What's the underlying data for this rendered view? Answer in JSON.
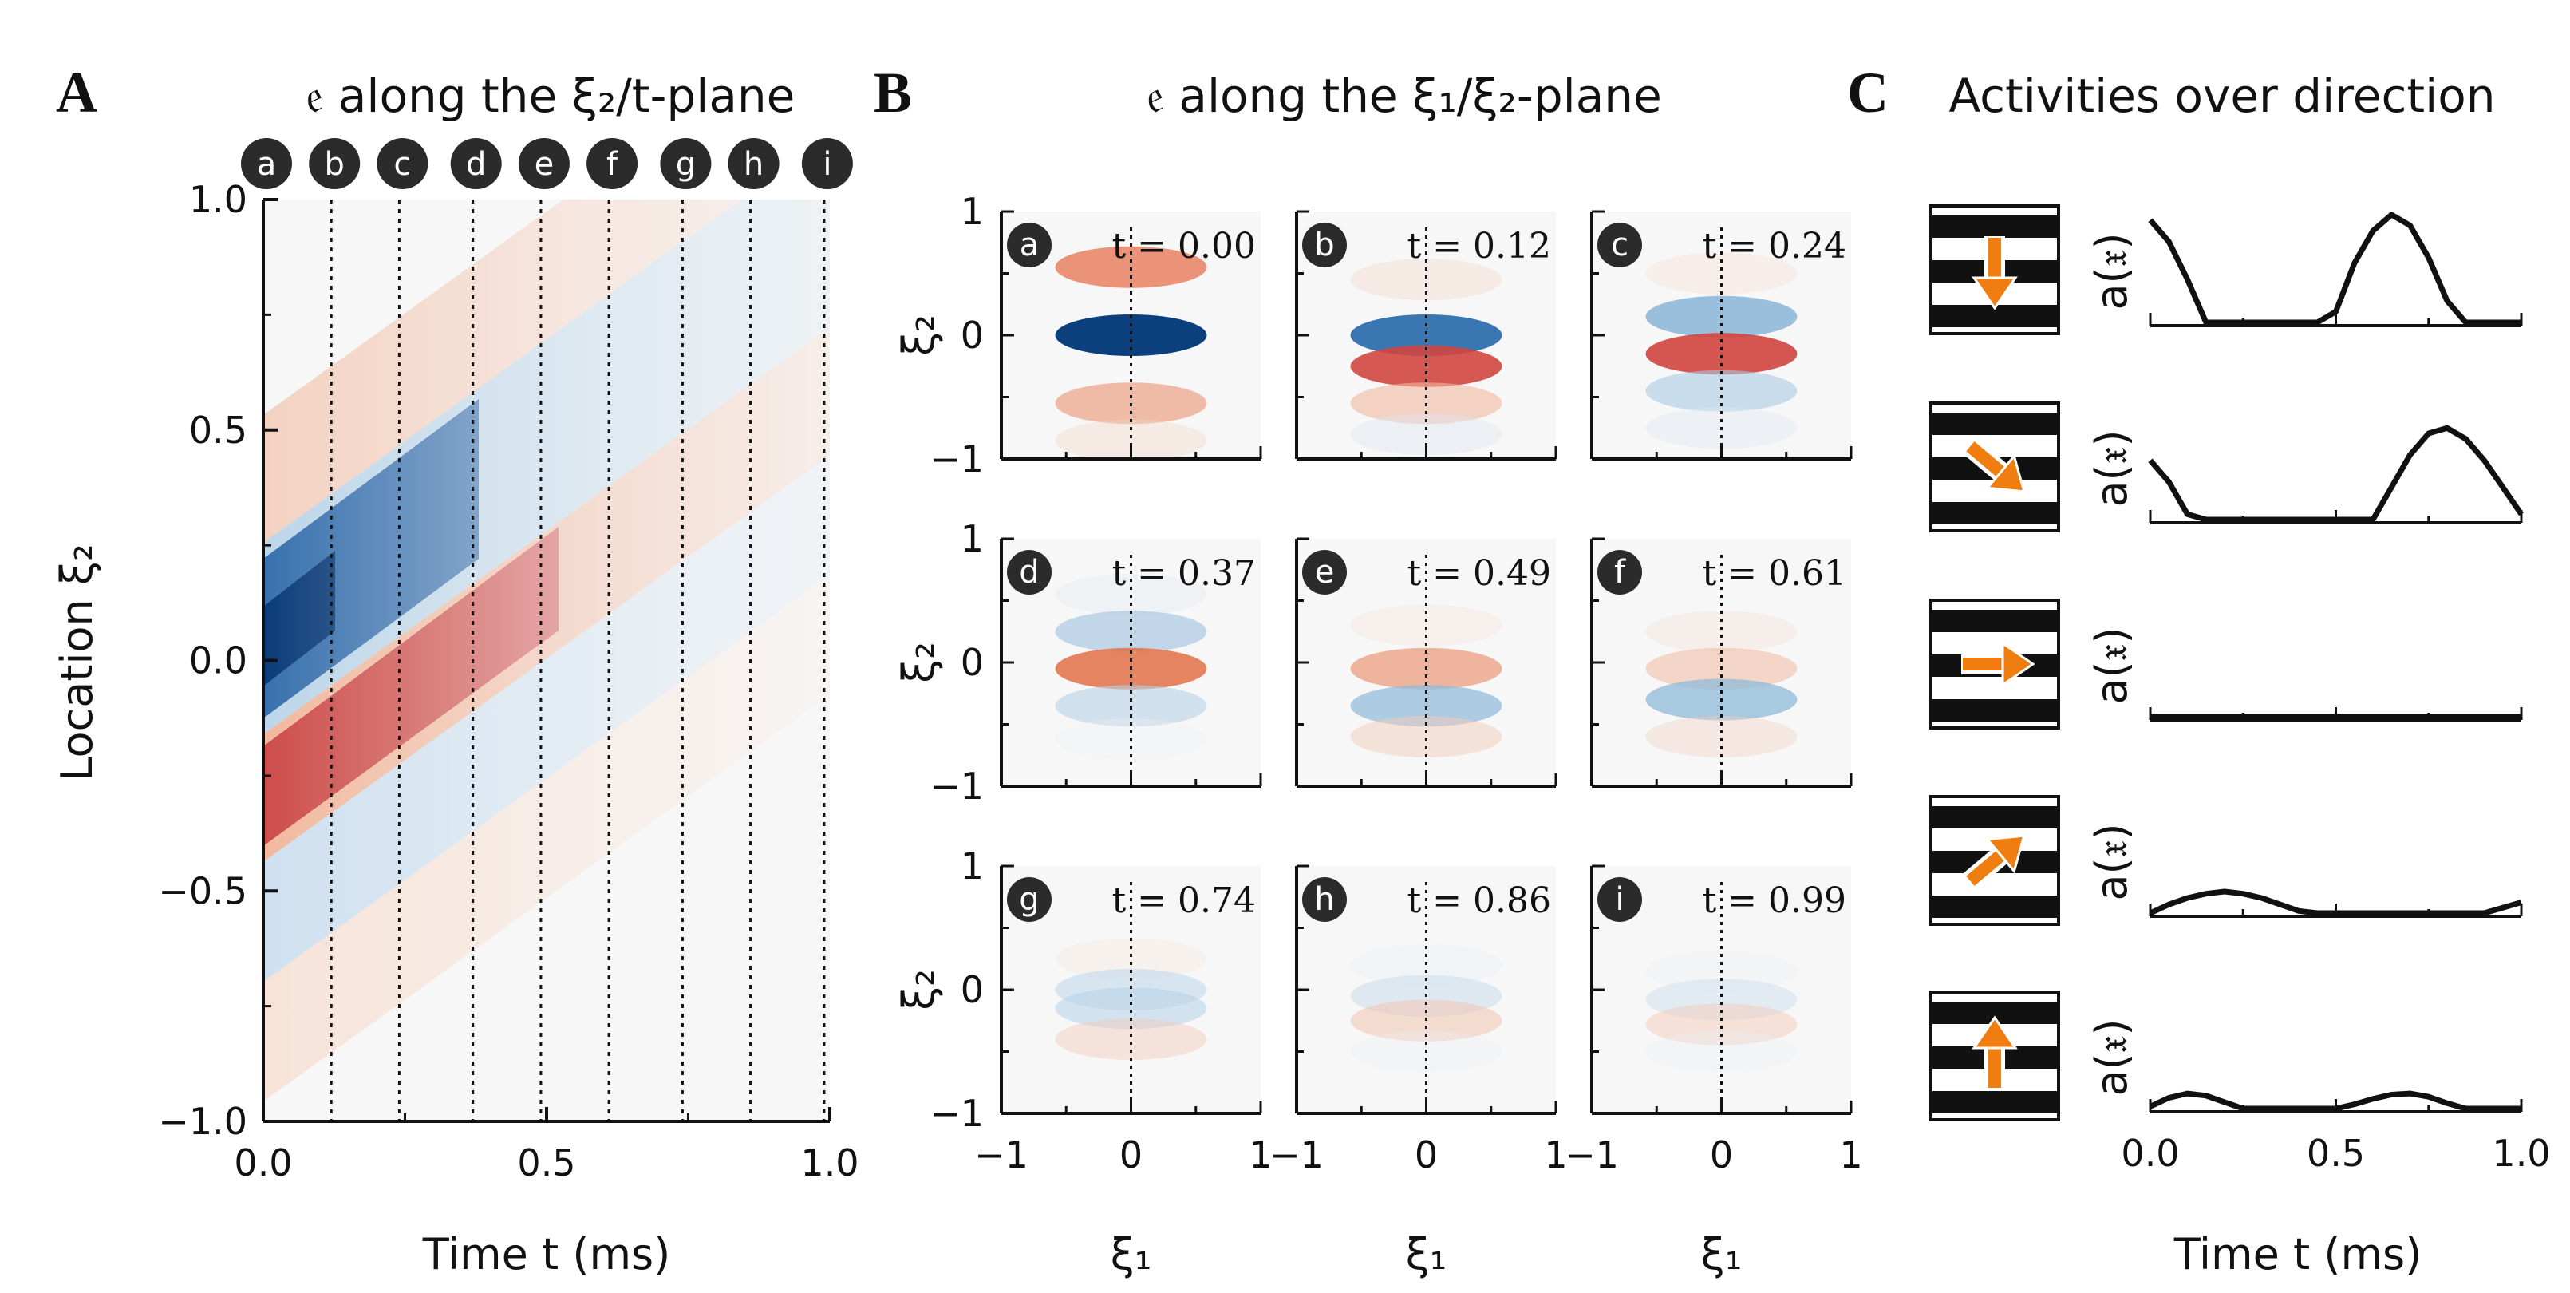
{
  "panels": {
    "A": {
      "letter": "A",
      "title": "𝔢 along the ξ₂/t-plane",
      "xlabel": "Time t (ms)",
      "ylabel": "Location ξ₂",
      "xticks": [
        "0.0",
        "0.5",
        "1.0"
      ],
      "yticks": [
        "1.0",
        "0.5",
        "0.0",
        "−0.5",
        "−1.0"
      ],
      "markers": [
        {
          "id": "a",
          "t": 0.0
        },
        {
          "id": "b",
          "t": 0.12
        },
        {
          "id": "c",
          "t": 0.24
        },
        {
          "id": "d",
          "t": 0.37
        },
        {
          "id": "e",
          "t": 0.49
        },
        {
          "id": "f",
          "t": 0.61
        },
        {
          "id": "g",
          "t": 0.74
        },
        {
          "id": "h",
          "t": 0.86
        },
        {
          "id": "i",
          "t": 0.99
        }
      ]
    },
    "B": {
      "letter": "B",
      "title": "𝔢 along the ξ₁/ξ₂-plane",
      "xlabel": "ξ₁",
      "ylabel": "ξ₂",
      "xticks": [
        "−1",
        "0",
        "1"
      ],
      "yticks": [
        "1",
        "0",
        "−1"
      ],
      "subplots": [
        {
          "id": "a",
          "label": "t = 0.00"
        },
        {
          "id": "b",
          "label": "t = 0.12"
        },
        {
          "id": "c",
          "label": "t = 0.24"
        },
        {
          "id": "d",
          "label": "t = 0.37"
        },
        {
          "id": "e",
          "label": "t = 0.49"
        },
        {
          "id": "f",
          "label": "t = 0.61"
        },
        {
          "id": "g",
          "label": "t = 0.74"
        },
        {
          "id": "h",
          "label": "t = 0.86"
        },
        {
          "id": "i",
          "label": "t = 0.99"
        }
      ]
    },
    "C": {
      "letter": "C",
      "title": "Activities over direction",
      "ylabel": "a(𝔵)",
      "xlabel": "Time t (ms)",
      "xticks": [
        "0.0",
        "0.5",
        "1.0"
      ],
      "rows": [
        {
          "direction": "down",
          "arrow_angle_deg": 90
        },
        {
          "direction": "down-right",
          "arrow_angle_deg": 40
        },
        {
          "direction": "right",
          "arrow_angle_deg": 0
        },
        {
          "direction": "up-right",
          "arrow_angle_deg": -40
        },
        {
          "direction": "up",
          "arrow_angle_deg": -90
        }
      ]
    }
  },
  "chart_data": [
    {
      "type": "heatmap",
      "panel": "A",
      "title": "𝔢 along the ξ₂/t-plane",
      "xlabel": "Time t (ms)",
      "ylabel": "Location ξ₂",
      "xlim": [
        0.0,
        1.0
      ],
      "ylim": [
        -1.0,
        1.0
      ],
      "colormap": "RdBu",
      "description_values": {
        "peak_blue_at": {
          "t": 0.0,
          "xi2": 0.0
        },
        "wave_speed_xi2_per_ms": 0.75,
        "decay": "amplitude decays with time"
      },
      "vertical_markers_t": [
        0.0,
        0.12,
        0.24,
        0.37,
        0.49,
        0.61,
        0.74,
        0.86,
        0.99
      ]
    },
    {
      "type": "heatmap",
      "panel": "B",
      "title": "𝔢 along the ξ₁/ξ₂-plane",
      "xlim": [
        -1,
        1
      ],
      "ylim": [
        -1,
        1
      ],
      "times": [
        0.0,
        0.12,
        0.24,
        0.37,
        0.49,
        0.61,
        0.74,
        0.86,
        0.99
      ]
    },
    {
      "type": "line",
      "panel": "C",
      "title": "Activities over direction",
      "xlabel": "Time t (ms)",
      "ylabel": "a(𝔵)",
      "xlim": [
        0.0,
        1.0
      ],
      "series": [
        {
          "name": "down",
          "x": [
            0.0,
            0.05,
            0.1,
            0.15,
            0.2,
            0.25,
            0.3,
            0.35,
            0.4,
            0.45,
            0.5,
            0.55,
            0.6,
            0.65,
            0.7,
            0.75,
            0.8,
            0.85,
            0.9,
            0.95,
            1.0
          ],
          "y": [
            0.95,
            0.75,
            0.4,
            0.0,
            0.0,
            0.0,
            0.0,
            0.0,
            0.0,
            0.0,
            0.1,
            0.55,
            0.85,
            1.0,
            0.9,
            0.6,
            0.2,
            0.0,
            0.0,
            0.0,
            0.0
          ]
        },
        {
          "name": "down-right",
          "x": [
            0.0,
            0.05,
            0.1,
            0.15,
            0.2,
            0.25,
            0.3,
            0.35,
            0.4,
            0.45,
            0.5,
            0.55,
            0.6,
            0.65,
            0.7,
            0.75,
            0.8,
            0.85,
            0.9,
            0.95,
            1.0
          ],
          "y": [
            0.55,
            0.35,
            0.05,
            0.0,
            0.0,
            0.0,
            0.0,
            0.0,
            0.0,
            0.0,
            0.0,
            0.0,
            0.0,
            0.3,
            0.6,
            0.8,
            0.85,
            0.75,
            0.55,
            0.3,
            0.05
          ]
        },
        {
          "name": "right",
          "x": [
            0.0,
            0.25,
            0.5,
            0.75,
            1.0
          ],
          "y": [
            0.0,
            0.0,
            0.0,
            0.0,
            0.0
          ]
        },
        {
          "name": "up-right",
          "x": [
            0.0,
            0.05,
            0.1,
            0.15,
            0.2,
            0.25,
            0.3,
            0.35,
            0.4,
            0.45,
            0.5,
            0.55,
            0.6,
            0.65,
            0.7,
            0.75,
            0.8,
            0.85,
            0.9,
            0.95,
            1.0
          ],
          "y": [
            0.0,
            0.08,
            0.14,
            0.18,
            0.2,
            0.18,
            0.14,
            0.08,
            0.02,
            0.0,
            0.0,
            0.0,
            0.0,
            0.0,
            0.0,
            0.0,
            0.0,
            0.0,
            0.0,
            0.05,
            0.1
          ]
        },
        {
          "name": "up",
          "x": [
            0.0,
            0.05,
            0.1,
            0.15,
            0.2,
            0.25,
            0.3,
            0.35,
            0.4,
            0.45,
            0.5,
            0.55,
            0.6,
            0.65,
            0.7,
            0.75,
            0.8,
            0.85,
            0.9,
            0.95,
            1.0
          ],
          "y": [
            0.02,
            0.1,
            0.14,
            0.12,
            0.06,
            0.0,
            0.0,
            0.0,
            0.0,
            0.0,
            0.0,
            0.04,
            0.09,
            0.13,
            0.14,
            0.11,
            0.05,
            0.0,
            0.0,
            0.0,
            0.0
          ]
        }
      ]
    }
  ]
}
